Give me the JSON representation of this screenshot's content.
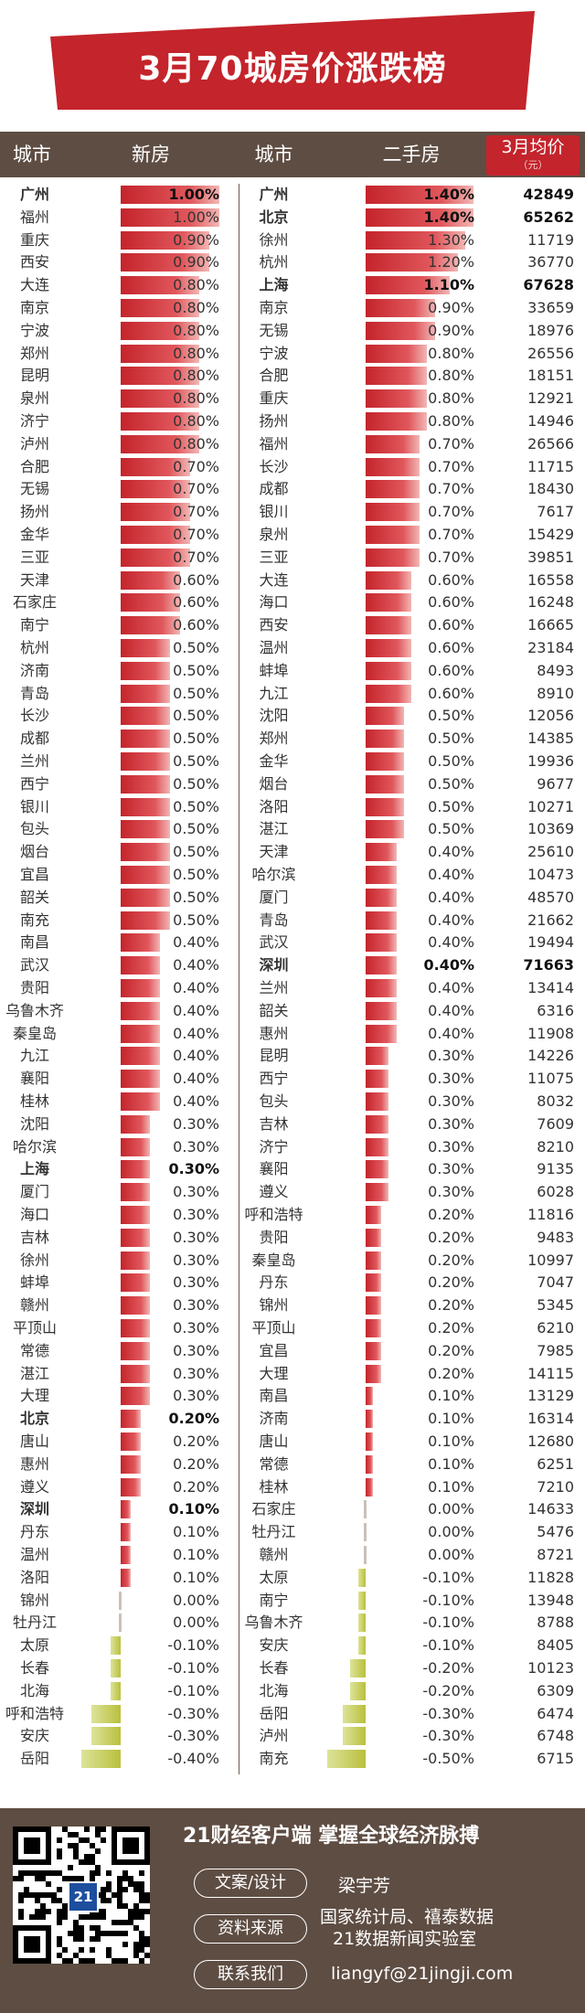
{
  "title": "3月70城房价涨跌榜",
  "header": {
    "city_col_1": "城市",
    "new_col": "新房",
    "city_col_2": "城市",
    "second_col": "二手房",
    "price_col": "3月均价",
    "price_unit": "（元）"
  },
  "colors": {
    "banner": "#c4242b",
    "header_bg": "#5e4d43",
    "positive_bar": "#c4242b",
    "zero_bar": "#c9c1b8",
    "negative_bar": "#b9c03c"
  },
  "chart_data": {
    "type": "bar",
    "unit": "%",
    "new_home": {
      "cities": [
        "广州",
        "福州",
        "重庆",
        "西安",
        "大连",
        "南京",
        "宁波",
        "郑州",
        "昆明",
        "泉州",
        "济宁",
        "泸州",
        "合肥",
        "无锡",
        "扬州",
        "金华",
        "三亚",
        "天津",
        "石家庄",
        "南宁",
        "杭州",
        "济南",
        "青岛",
        "长沙",
        "成都",
        "兰州",
        "西宁",
        "银川",
        "包头",
        "烟台",
        "宜昌",
        "韶关",
        "南充",
        "南昌",
        "武汉",
        "贵阳",
        "乌鲁木齐",
        "秦皇岛",
        "九江",
        "襄阳",
        "桂林",
        "沈阳",
        "哈尔滨",
        "上海",
        "厦门",
        "海口",
        "吉林",
        "徐州",
        "蚌埠",
        "赣州",
        "平顶山",
        "常德",
        "湛江",
        "大理",
        "北京",
        "唐山",
        "惠州",
        "遵义",
        "深圳",
        "丹东",
        "温州",
        "洛阳",
        "锦州",
        "牡丹江",
        "太原",
        "长春",
        "北海",
        "呼和浩特",
        "安庆",
        "岳阳"
      ],
      "labels": [
        "1.00%",
        "1.00%",
        "0.90%",
        "0.90%",
        "0.80%",
        "0.80%",
        "0.80%",
        "0.80%",
        "0.80%",
        "0.80%",
        "0.80%",
        "0.80%",
        "0.70%",
        "0.70%",
        "0.70%",
        "0.70%",
        "0.70%",
        "0.60%",
        "0.60%",
        "0.60%",
        "0.50%",
        "0.50%",
        "0.50%",
        "0.50%",
        "0.50%",
        "0.50%",
        "0.50%",
        "0.50%",
        "0.50%",
        "0.50%",
        "0.50%",
        "0.50%",
        "0.50%",
        "0.40%",
        "0.40%",
        "0.40%",
        "0.40%",
        "0.40%",
        "0.40%",
        "0.40%",
        "0.40%",
        "0.30%",
        "0.30%",
        "0.30%",
        "0.30%",
        "0.30%",
        "0.30%",
        "0.30%",
        "0.30%",
        "0.30%",
        "0.30%",
        "0.30%",
        "0.30%",
        "0.30%",
        "0.20%",
        "0.20%",
        "0.20%",
        "0.20%",
        "0.10%",
        "0.10%",
        "0.10%",
        "0.10%",
        "0.00%",
        "0.00%",
        "-0.10%",
        "-0.10%",
        "-0.10%",
        "-0.30%",
        "-0.30%",
        "-0.40%"
      ],
      "values": [
        1.0,
        1.0,
        0.9,
        0.9,
        0.8,
        0.8,
        0.8,
        0.8,
        0.8,
        0.8,
        0.8,
        0.8,
        0.7,
        0.7,
        0.7,
        0.7,
        0.7,
        0.6,
        0.6,
        0.6,
        0.5,
        0.5,
        0.5,
        0.5,
        0.5,
        0.5,
        0.5,
        0.5,
        0.5,
        0.5,
        0.5,
        0.5,
        0.5,
        0.4,
        0.4,
        0.4,
        0.4,
        0.4,
        0.4,
        0.4,
        0.4,
        0.3,
        0.3,
        0.3,
        0.3,
        0.3,
        0.3,
        0.3,
        0.3,
        0.3,
        0.3,
        0.3,
        0.3,
        0.3,
        0.2,
        0.2,
        0.2,
        0.2,
        0.1,
        0.1,
        0.1,
        0.1,
        0.0,
        0.0,
        -0.1,
        -0.1,
        -0.1,
        -0.3,
        -0.3,
        -0.4
      ]
    },
    "second_hand": {
      "cities": [
        "广州",
        "北京",
        "徐州",
        "杭州",
        "上海",
        "南京",
        "无锡",
        "宁波",
        "合肥",
        "重庆",
        "扬州",
        "福州",
        "长沙",
        "成都",
        "银川",
        "泉州",
        "三亚",
        "大连",
        "海口",
        "西安",
        "温州",
        "蚌埠",
        "九江",
        "沈阳",
        "郑州",
        "金华",
        "烟台",
        "洛阳",
        "湛江",
        "天津",
        "哈尔滨",
        "厦门",
        "青岛",
        "武汉",
        "深圳",
        "兰州",
        "韶关",
        "惠州",
        "昆明",
        "西宁",
        "包头",
        "吉林",
        "济宁",
        "襄阳",
        "遵义",
        "呼和浩特",
        "贵阳",
        "秦皇岛",
        "丹东",
        "锦州",
        "平顶山",
        "宜昌",
        "大理",
        "南昌",
        "济南",
        "唐山",
        "常德",
        "桂林",
        "石家庄",
        "牡丹江",
        "赣州",
        "太原",
        "南宁",
        "乌鲁木齐",
        "安庆",
        "长春",
        "北海",
        "岳阳",
        "泸州",
        "南充"
      ],
      "labels": [
        "1.40%",
        "1.40%",
        "1.30%",
        "1.20%",
        "1.10%",
        "0.90%",
        "0.90%",
        "0.80%",
        "0.80%",
        "0.80%",
        "0.80%",
        "0.70%",
        "0.70%",
        "0.70%",
        "0.70%",
        "0.70%",
        "0.70%",
        "0.60%",
        "0.60%",
        "0.60%",
        "0.60%",
        "0.60%",
        "0.60%",
        "0.50%",
        "0.50%",
        "0.50%",
        "0.50%",
        "0.50%",
        "0.50%",
        "0.40%",
        "0.40%",
        "0.40%",
        "0.40%",
        "0.40%",
        "0.40%",
        "0.40%",
        "0.40%",
        "0.40%",
        "0.30%",
        "0.30%",
        "0.30%",
        "0.30%",
        "0.30%",
        "0.30%",
        "0.30%",
        "0.20%",
        "0.20%",
        "0.20%",
        "0.20%",
        "0.20%",
        "0.20%",
        "0.20%",
        "0.20%",
        "0.10%",
        "0.10%",
        "0.10%",
        "0.10%",
        "0.10%",
        "0.00%",
        "0.00%",
        "0.00%",
        "-0.10%",
        "-0.10%",
        "-0.10%",
        "-0.10%",
        "-0.20%",
        "-0.20%",
        "-0.30%",
        "-0.30%",
        "-0.50%"
      ],
      "values": [
        1.4,
        1.4,
        1.3,
        1.2,
        1.1,
        0.9,
        0.9,
        0.8,
        0.8,
        0.8,
        0.8,
        0.7,
        0.7,
        0.7,
        0.7,
        0.7,
        0.7,
        0.6,
        0.6,
        0.6,
        0.6,
        0.6,
        0.6,
        0.5,
        0.5,
        0.5,
        0.5,
        0.5,
        0.5,
        0.4,
        0.4,
        0.4,
        0.4,
        0.4,
        0.4,
        0.4,
        0.4,
        0.4,
        0.3,
        0.3,
        0.3,
        0.3,
        0.3,
        0.3,
        0.3,
        0.2,
        0.2,
        0.2,
        0.2,
        0.2,
        0.2,
        0.2,
        0.2,
        0.1,
        0.1,
        0.1,
        0.1,
        0.1,
        0.0,
        0.0,
        0.0,
        -0.1,
        -0.1,
        -0.1,
        -0.1,
        -0.2,
        -0.2,
        -0.3,
        -0.3,
        -0.5
      ],
      "avg_price": [
        "42849",
        "65262",
        "11719",
        "36770",
        "67628",
        "33659",
        "18976",
        "26556",
        "18151",
        "12921",
        "14946",
        "26566",
        "11715",
        "18430",
        "7617",
        "15429",
        "39851",
        "16558",
        "16248",
        "16665",
        "23184",
        "8493",
        "8910",
        "12056",
        "14385",
        "19936",
        "9677",
        "10271",
        "10369",
        "25610",
        "10473",
        "48570",
        "21662",
        "19494",
        "71663",
        "13414",
        "6316",
        "11908",
        "14226",
        "11075",
        "8032",
        "7609",
        "8210",
        "9135",
        "6028",
        "11816",
        "9483",
        "10997",
        "7047",
        "5345",
        "6210",
        "7985",
        "14115",
        "13129",
        "16314",
        "12680",
        "6251",
        "7210",
        "14633",
        "5476",
        "8721",
        "11828",
        "13948",
        "8788",
        "8405",
        "10123",
        "6309",
        "6474",
        "6748",
        "6715"
      ]
    },
    "highlighted_cities": [
      "广州",
      "北京",
      "上海",
      "深圳"
    ]
  },
  "footer": {
    "qr_label": "21",
    "slogan": "21财经客户端 掌握全球经济脉搏",
    "design_label": "文案/设计",
    "design_value": "梁宇芳",
    "source_label": "资料来源",
    "source_value_1": "国家统计局、禧泰数据",
    "source_value_2": "21数据新闻实验室",
    "contact_label": "联系我们",
    "contact_value": "liangyf@21jingji.com"
  }
}
